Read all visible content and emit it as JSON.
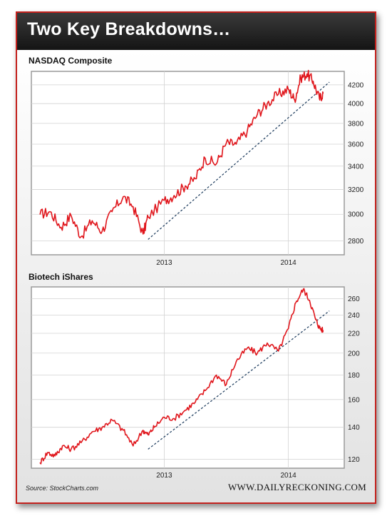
{
  "header": {
    "title": "Two Key Breakdowns…"
  },
  "footer": {
    "source": "Source: StockCharts.com",
    "site": "WWW.DAILYRECKONING.COM"
  },
  "colors": {
    "series": "#e0161c",
    "trendline": "#1b3a5c",
    "frame": "#c3211d"
  },
  "chart_data": [
    {
      "type": "line",
      "title": "NASDAQ Composite",
      "x_ticks": [
        2013,
        2014
      ],
      "y_ticks": [
        2800,
        3000,
        3200,
        3400,
        3600,
        3800,
        4000,
        4200
      ],
      "ylim": [
        2700,
        4350
      ],
      "yscale": "log",
      "grid": true,
      "series": [
        {
          "x": [
            2012.0,
            2012.08,
            2012.17,
            2012.25,
            2012.33,
            2012.42,
            2012.5,
            2012.58,
            2012.67,
            2012.75,
            2012.83,
            2012.87,
            2013.0,
            2013.08,
            2013.17,
            2013.25,
            2013.33,
            2013.42,
            2013.5,
            2013.58,
            2013.67,
            2013.75,
            2013.83,
            2013.92,
            2014.0,
            2014.05,
            2014.1,
            2014.15,
            2014.2,
            2014.25,
            2014.28
          ],
          "y": [
            3000,
            3020,
            2900,
            2990,
            2830,
            2950,
            2870,
            3020,
            3140,
            3060,
            2850,
            2980,
            3110,
            3150,
            3230,
            3290,
            3470,
            3420,
            3610,
            3600,
            3730,
            3890,
            4000,
            4100,
            4150,
            4040,
            4280,
            4320,
            4240,
            4050,
            4110
          ]
        }
      ],
      "trendline": {
        "x": [
          2012.87,
          2014.33
        ],
        "y": [
          2810,
          4230
        ]
      }
    },
    {
      "type": "line",
      "title": "Biotech iShares",
      "x_ticks": [
        2013,
        2014
      ],
      "y_ticks": [
        120,
        140,
        160,
        180,
        200,
        220,
        240,
        260
      ],
      "ylim": [
        115,
        275
      ],
      "yscale": "log",
      "grid": true,
      "series": [
        {
          "x": [
            2012.0,
            2012.06,
            2012.12,
            2012.18,
            2012.25,
            2012.33,
            2012.42,
            2012.5,
            2012.58,
            2012.67,
            2012.75,
            2012.83,
            2012.87,
            2012.92,
            2013.0,
            2013.08,
            2013.17,
            2013.25,
            2013.33,
            2013.42,
            2013.5,
            2013.58,
            2013.67,
            2013.75,
            2013.83,
            2013.92,
            2014.0,
            2014.06,
            2014.12,
            2014.17,
            2014.22,
            2014.25,
            2014.28
          ],
          "y": [
            118,
            124,
            122,
            128,
            126,
            130,
            137,
            140,
            145,
            138,
            128,
            138,
            135,
            140,
            147,
            146,
            152,
            158,
            167,
            180,
            172,
            192,
            205,
            200,
            210,
            202,
            225,
            255,
            272,
            258,
            235,
            226,
            223
          ]
        }
      ],
      "trendline": {
        "x": [
          2012.87,
          2014.33
        ],
        "y": [
          126,
          245
        ]
      }
    }
  ]
}
